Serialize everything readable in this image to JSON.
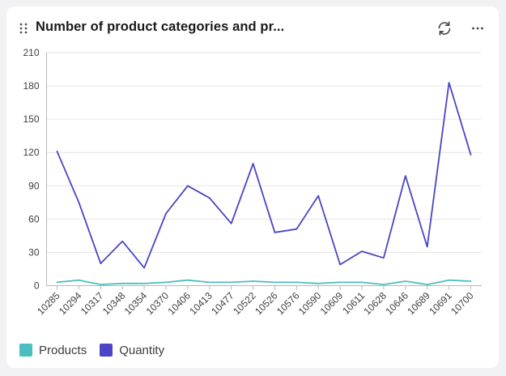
{
  "header": {
    "title": "Number of product categories and pr..."
  },
  "icons": {
    "drag": "drag-handle-icon",
    "refresh": "refresh-icon",
    "more": "more-options-icon"
  },
  "colors": {
    "products": "#4bbfbf",
    "quantity": "#4a44c6",
    "grid": "#e6e6e6",
    "axis": "#b8b8b8"
  },
  "chart_data": {
    "type": "line",
    "title": "Number of product categories and pr...",
    "xlabel": "",
    "ylabel": "",
    "ylim": [
      0,
      210
    ],
    "yticks": [
      0,
      30,
      60,
      90,
      120,
      150,
      180,
      210
    ],
    "grid": true,
    "legend_position": "bottom-left",
    "categories": [
      "10285",
      "10294",
      "10317",
      "10348",
      "10354",
      "10370",
      "10406",
      "10413",
      "10477",
      "10522",
      "10526",
      "10576",
      "10590",
      "10609",
      "10611",
      "10628",
      "10646",
      "10689",
      "10691",
      "10700"
    ],
    "series": [
      {
        "name": "Products",
        "color": "#4bbfbf",
        "values": [
          3,
          5,
          1,
          2,
          2,
          3,
          5,
          3,
          3,
          4,
          3,
          3,
          2,
          3,
          3,
          1,
          4,
          1,
          5,
          4
        ]
      },
      {
        "name": "Quantity",
        "color": "#4a44c6",
        "values": [
          121,
          75,
          20,
          40,
          16,
          65,
          90,
          79,
          56,
          110,
          48,
          51,
          81,
          19,
          31,
          25,
          99,
          35,
          183,
          118
        ]
      }
    ]
  }
}
